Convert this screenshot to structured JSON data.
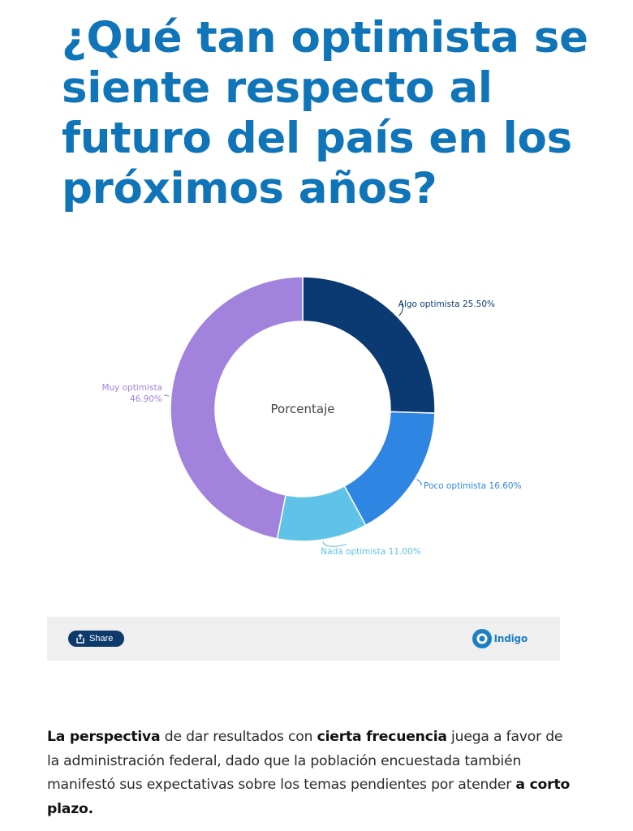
{
  "headline": "¿Qué tan optimista se siente respecto al futuro del país en los próximos años?",
  "chart_data": {
    "type": "pie",
    "variant": "donut",
    "center_label": "Porcentaje",
    "slices": [
      {
        "label": "Algo optimista",
        "value_label": "25.50%",
        "value": 25.5,
        "color": "#0b3a72"
      },
      {
        "label": "Poco optimista",
        "value_label": "16.60%",
        "value": 16.6,
        "color": "#2f86e2"
      },
      {
        "label": "Nada optimista",
        "value_label": "11.00%",
        "value": 11.0,
        "color": "#5ec3e6"
      },
      {
        "label": "Muy optimista",
        "value_label": "46.90%",
        "value": 46.9,
        "color": "#a183dd"
      }
    ]
  },
  "toolbar": {
    "share_label": "Share",
    "brand_name": "Indigo"
  },
  "article": {
    "p1_bold1": "La perspectiva",
    "p1_text1": " de dar resultados con ",
    "p1_bold2": "cierta frecuencia",
    "p1_text2": " juega a favor de la administración federal, dado que la población encuestada también manifestó sus expectativas sobre los temas pendientes por atender ",
    "p1_bold3": "a corto plazo."
  }
}
